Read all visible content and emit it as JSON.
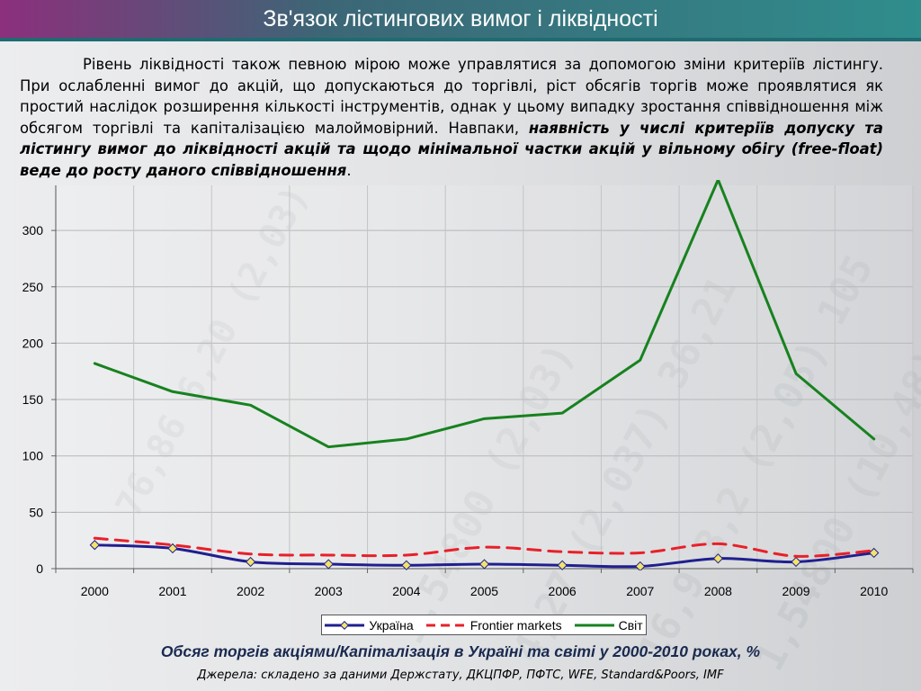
{
  "slide": {
    "title": "Зв'язок лістингових вимог і ліквідності",
    "paragraph_plain": "Рівень ліквідності також певною мірою може управлятися за допомогою зміни критеріїв лістингу. При ослабленні вимог до акцій, що допускаються до торгівлі, ріст обсягів торгів може проявлятися як простий наслідок розширення кількості інструментів, однак у цьому випадку зростання співвідношення між обсягом торгівлі та капіталізацією малоймовірний. Навпаки, ",
    "paragraph_emphasis": "наявність у числі критеріїв допуску та лістингу вимог до ліквідності акцій та щодо мінімальної частки акцій у вільному обігу (free-float) веде до росту даного співвідношення",
    "paragraph_end": ".",
    "caption": "Обсяг торгів акціями/Капіталізація в Україні та світі у 2000-2010 роках, %",
    "source": "Джерела: складено за даними Держстату, ДКЦПФР, ПФТС, WFE, Standard&Poors, IMF"
  },
  "chart_data": {
    "type": "line",
    "title": "Обсяг торгів акціями/Капіталізація в Україні та світі у 2000-2010 роках, %",
    "xlabel": "",
    "ylabel": "",
    "ylim": [
      0,
      340
    ],
    "yticks": [
      0,
      50,
      100,
      150,
      200,
      250,
      300
    ],
    "grid": true,
    "legend_position": "bottom",
    "categories": [
      "2000",
      "2001",
      "2002",
      "2003",
      "2004",
      "2005",
      "2006",
      "2007",
      "2008",
      "2009",
      "2010"
    ],
    "series": [
      {
        "name": "Україна",
        "color": "#1f1f8f",
        "style": "solid-markers",
        "values": [
          21,
          18,
          6,
          4,
          3,
          4,
          3,
          2,
          9,
          6,
          14
        ]
      },
      {
        "name": "Frontier markets",
        "color": "#e8202a",
        "style": "dashed",
        "values": [
          27,
          21,
          13,
          12,
          12,
          19,
          15,
          14,
          22,
          11,
          16
        ]
      },
      {
        "name": "Світ",
        "color": "#17821f",
        "style": "solid",
        "values": [
          182,
          157,
          145,
          108,
          115,
          133,
          138,
          185,
          345,
          173,
          115
        ]
      }
    ]
  }
}
